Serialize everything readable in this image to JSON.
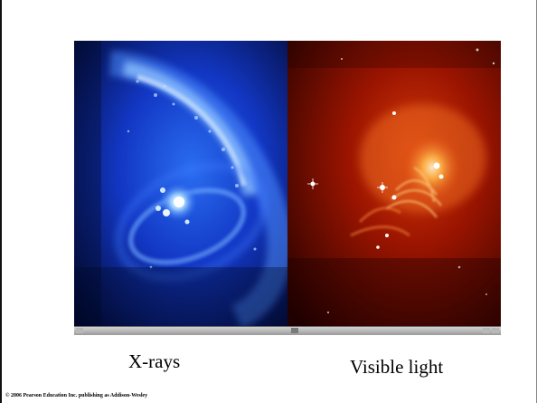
{
  "captions": {
    "xrays": "X-rays",
    "visible": "Visible light"
  },
  "copyright": "© 2006 Pearson Education Inc. publishing as Addison-Wesley",
  "colors": {
    "xray_tint": "#1a6cff",
    "visible_tint": "#c41a00"
  }
}
